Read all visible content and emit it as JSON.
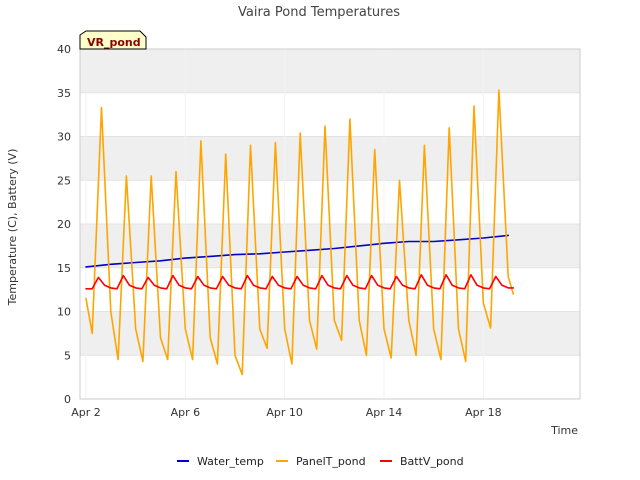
{
  "chart_data": {
    "type": "line",
    "title": "Vaira Pond Temperatures",
    "xlabel": "Time",
    "ylabel": "Temperature (C), Battery (V)",
    "badge": "VR_pond",
    "ylim": [
      0,
      40
    ],
    "yticks": [
      0,
      5,
      10,
      15,
      20,
      25,
      30,
      35,
      40
    ],
    "xlim": [
      "Apr 2",
      "Apr 20"
    ],
    "x_tick_labels": [
      "Apr 2",
      "Apr 6",
      "Apr 10",
      "Apr 14",
      "Apr 18"
    ],
    "grid": true,
    "legend_position": "bottom",
    "colors": {
      "band": "#efefef",
      "plot_border": "#cccccc"
    },
    "series": [
      {
        "name": "Water_temp",
        "color": "#0000cc",
        "x": [
          "Apr 2",
          "Apr 3",
          "Apr 4",
          "Apr 5",
          "Apr 6",
          "Apr 7",
          "Apr 8",
          "Apr 9",
          "Apr 10",
          "Apr 11",
          "Apr 12",
          "Apr 13",
          "Apr 14",
          "Apr 15",
          "Apr 16",
          "Apr 17",
          "Apr 18",
          "Apr 19"
        ],
        "values": [
          15.1,
          15.4,
          15.6,
          15.8,
          16.1,
          16.3,
          16.5,
          16.6,
          16.8,
          17.0,
          17.2,
          17.5,
          17.8,
          18.0,
          18.0,
          18.2,
          18.4,
          18.7
        ]
      },
      {
        "name": "PanelT_pond",
        "color": "#ffa500",
        "x": [
          "Apr 2",
          "Apr 2 06:00",
          "Apr 2 15:00",
          "Apr 3",
          "Apr 3 07:00",
          "Apr 3 15:00",
          "Apr 4",
          "Apr 4 07:00",
          "Apr 4 15:00",
          "Apr 5",
          "Apr 5 07:00",
          "Apr 5 15:00",
          "Apr 6",
          "Apr 6 07:00",
          "Apr 6 15:00",
          "Apr 7",
          "Apr 7 07:00",
          "Apr 7 15:00",
          "Apr 8",
          "Apr 8 07:00",
          "Apr 8 15:00",
          "Apr 9",
          "Apr 9 07:00",
          "Apr 9 15:00",
          "Apr 10",
          "Apr 10 07:00",
          "Apr 10 15:00",
          "Apr 11",
          "Apr 11 07:00",
          "Apr 11 15:00",
          "Apr 12",
          "Apr 12 07:00",
          "Apr 12 15:00",
          "Apr 13",
          "Apr 13 07:00",
          "Apr 13 15:00",
          "Apr 14",
          "Apr 14 07:00",
          "Apr 14 15:00",
          "Apr 15",
          "Apr 15 07:00",
          "Apr 15 15:00",
          "Apr 16",
          "Apr 16 07:00",
          "Apr 16 15:00",
          "Apr 17",
          "Apr 17 07:00",
          "Apr 17 15:00",
          "Apr 18",
          "Apr 18 07:00",
          "Apr 18 15:00",
          "Apr 19",
          "Apr 19 05:00"
        ],
        "values": [
          11.5,
          7.5,
          33.3,
          10,
          4.5,
          25.5,
          8,
          4.3,
          25.5,
          7,
          4.5,
          26,
          8,
          4.5,
          29.5,
          7,
          4.0,
          28,
          5,
          2.8,
          29,
          8,
          5.8,
          29.3,
          8,
          4.0,
          30.4,
          9,
          5.7,
          31.2,
          9,
          6.7,
          32,
          9,
          5.0,
          28.5,
          8,
          4.7,
          25,
          9,
          5.0,
          29,
          8,
          4.5,
          31,
          8,
          4.3,
          33.5,
          11,
          8.1,
          35.3,
          14,
          12
        ]
      },
      {
        "name": "BattV_pond",
        "color": "#ff0000",
        "x": [
          "Apr 2",
          "Apr 2 06:00",
          "Apr 2 12:00",
          "Apr 2 18:00",
          "Apr 3",
          "Apr 3 06:00",
          "Apr 3 12:00",
          "Apr 3 18:00",
          "Apr 4",
          "Apr 4 06:00",
          "Apr 4 12:00",
          "Apr 4 18:00",
          "Apr 5",
          "Apr 5 06:00",
          "Apr 5 12:00",
          "Apr 5 18:00",
          "Apr 6",
          "Apr 6 06:00",
          "Apr 6 12:00",
          "Apr 6 18:00",
          "Apr 7",
          "Apr 7 06:00",
          "Apr 7 12:00",
          "Apr 7 18:00",
          "Apr 8",
          "Apr 8 06:00",
          "Apr 8 12:00",
          "Apr 8 18:00",
          "Apr 9",
          "Apr 9 06:00",
          "Apr 9 12:00",
          "Apr 9 18:00",
          "Apr 10",
          "Apr 10 06:00",
          "Apr 10 12:00",
          "Apr 10 18:00",
          "Apr 11",
          "Apr 11 06:00",
          "Apr 11 12:00",
          "Apr 11 18:00",
          "Apr 12",
          "Apr 12 06:00",
          "Apr 12 12:00",
          "Apr 12 18:00",
          "Apr 13",
          "Apr 13 06:00",
          "Apr 13 12:00",
          "Apr 13 18:00",
          "Apr 14",
          "Apr 14 06:00",
          "Apr 14 12:00",
          "Apr 14 18:00",
          "Apr 15",
          "Apr 15 06:00",
          "Apr 15 12:00",
          "Apr 15 18:00",
          "Apr 16",
          "Apr 16 06:00",
          "Apr 16 12:00",
          "Apr 16 18:00",
          "Apr 17",
          "Apr 17 06:00",
          "Apr 17 12:00",
          "Apr 17 18:00",
          "Apr 18",
          "Apr 18 06:00",
          "Apr 18 12:00",
          "Apr 18 18:00",
          "Apr 19",
          "Apr 19 05:00"
        ],
        "values": [
          12.6,
          12.6,
          13.9,
          13.0,
          12.7,
          12.6,
          14.1,
          13.0,
          12.7,
          12.6,
          13.9,
          13.0,
          12.7,
          12.6,
          14.1,
          13.0,
          12.7,
          12.6,
          14.0,
          13.0,
          12.7,
          12.6,
          14.0,
          13.0,
          12.7,
          12.6,
          14.1,
          13.0,
          12.7,
          12.6,
          14.0,
          13.0,
          12.7,
          12.6,
          14.0,
          13.0,
          12.7,
          12.6,
          14.1,
          13.0,
          12.7,
          12.6,
          14.1,
          13.0,
          12.7,
          12.6,
          14.1,
          13.0,
          12.7,
          12.6,
          14.0,
          13.0,
          12.7,
          12.6,
          14.2,
          13.0,
          12.7,
          12.6,
          14.2,
          13.0,
          12.7,
          12.6,
          14.2,
          13.0,
          12.7,
          12.6,
          14.0,
          13.0,
          12.7,
          12.7
        ]
      }
    ]
  }
}
